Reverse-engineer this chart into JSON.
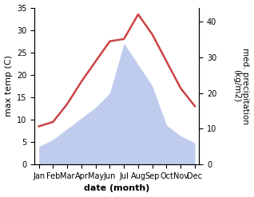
{
  "months": [
    "Jan",
    "Feb",
    "Mar",
    "Apr",
    "May",
    "Jun",
    "Jul",
    "Aug",
    "Sep",
    "Oct",
    "Nov",
    "Dec"
  ],
  "month_indices": [
    0,
    1,
    2,
    3,
    4,
    5,
    6,
    7,
    8,
    9,
    10,
    11
  ],
  "temperature": [
    8.5,
    9.5,
    13.5,
    18.5,
    23.0,
    27.5,
    28.0,
    33.5,
    29.0,
    23.0,
    17.0,
    13.0
  ],
  "precipitation": [
    5.0,
    7.0,
    10.0,
    13.0,
    16.0,
    20.0,
    34.0,
    28.0,
    22.0,
    11.0,
    8.0,
    6.0
  ],
  "temp_color": "#cc4444",
  "precip_color": "#c0ccee",
  "left_ylabel": "max temp (C)",
  "right_ylabel": "med. precipitation\n(kg/m2)",
  "xlabel": "date (month)",
  "left_ylim": [
    0,
    35
  ],
  "right_ylim": [
    0,
    44
  ],
  "left_yticks": [
    0,
    5,
    10,
    15,
    20,
    25,
    30,
    35
  ],
  "right_yticks": [
    0,
    10,
    20,
    30,
    40
  ],
  "bg_color": "#ffffff"
}
